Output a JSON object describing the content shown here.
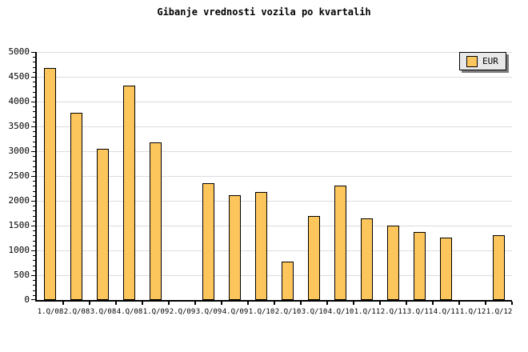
{
  "title": "Gibanje vrednosti vozila po kvartalih",
  "legend": {
    "label": "EUR"
  },
  "y_axis": {
    "tick_labels": [
      "5000",
      "4500",
      "4000",
      "3500",
      "3000",
      "2500",
      "2000",
      "1500",
      "1000",
      "500",
      "0"
    ]
  },
  "x_axis": {
    "labels": [
      "1.Q/08",
      "2.Q/08",
      "3.Q/08",
      "4.Q/08",
      "1.Q/09",
      "2.Q/09",
      "3.Q/09",
      "4.Q/09",
      "1.Q/10",
      "2.Q/10",
      "3.Q/10",
      "4.Q/10",
      "1.Q/11",
      "2.Q/11",
      "3.Q/11",
      "4.Q/11",
      "1.Q/12",
      "1.Q/12"
    ]
  },
  "chart_data": {
    "type": "bar",
    "title": "Gibanje vrednosti vozila po kvartalih",
    "categories": [
      "1.Q/08",
      "2.Q/08",
      "3.Q/08",
      "4.Q/08",
      "1.Q/09",
      "2.Q/09",
      "3.Q/09",
      "4.Q/09",
      "1.Q/10",
      "2.Q/10",
      "3.Q/10",
      "4.Q/10",
      "1.Q/11",
      "2.Q/11",
      "3.Q/11",
      "4.Q/11",
      "1.Q/12",
      "1.Q/12"
    ],
    "series": [
      {
        "name": "EUR",
        "values": [
          4680,
          3770,
          3050,
          4320,
          3180,
          null,
          2360,
          2110,
          2170,
          780,
          1700,
          2300,
          1640,
          1500,
          1370,
          1250,
          null,
          1300
        ]
      }
    ],
    "xlabel": "",
    "ylabel": "",
    "ylim": [
      0,
      5000
    ],
    "ytick_step": 500,
    "y_minor_tick_step": 100,
    "grid": true,
    "legend_position": "top-right",
    "colors": {
      "bar_fill": "#fcc65c",
      "bar_border": "#000000",
      "grid": "#dcdcdc",
      "axis": "#000000"
    }
  }
}
